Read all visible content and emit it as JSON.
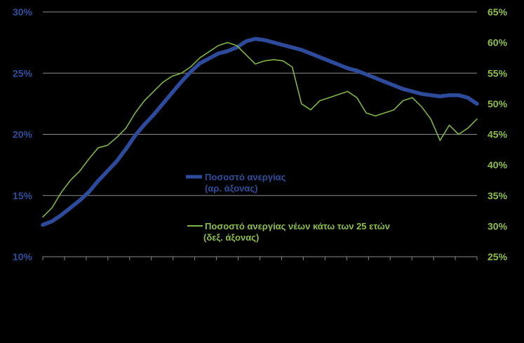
{
  "chart_data": {
    "type": "line",
    "grid": "horizontal",
    "legend_placement": "center",
    "colors": {
      "background": "#000000",
      "grid": "#8a8a8a",
      "left_axis_text": "#2f4f9e",
      "right_axis_text": "#8fbf4a",
      "series_total": "#2e4a9a",
      "series_youth": "#7fb543"
    },
    "y_left": {
      "min": 10,
      "max": 30,
      "ticks": [
        "10%",
        "15%",
        "20%",
        "25%",
        "30%"
      ],
      "tick_values": [
        10,
        15,
        20,
        25,
        30
      ]
    },
    "y_right": {
      "min": 25,
      "max": 65,
      "ticks": [
        "25%",
        "30%",
        "35%",
        "40%",
        "45%",
        "50%",
        "55%",
        "60%",
        "65%"
      ],
      "tick_values": [
        25,
        30,
        35,
        40,
        45,
        50,
        55,
        60,
        65
      ]
    },
    "x_tick_count": 21,
    "series": [
      {
        "name": "Ποσοστό ανεργίας",
        "name_line2": "(αρ. άξονας)",
        "axis": "left",
        "values": [
          12.6,
          12.9,
          13.4,
          14.0,
          14.6,
          15.3,
          16.2,
          17.0,
          17.8,
          18.8,
          19.9,
          20.8,
          21.6,
          22.5,
          23.4,
          24.3,
          25.1,
          25.8,
          26.2,
          26.6,
          26.8,
          27.1,
          27.6,
          27.8,
          27.7,
          27.5,
          27.3,
          27.1,
          26.9,
          26.6,
          26.3,
          26.0,
          25.7,
          25.4,
          25.2,
          24.9,
          24.6,
          24.3,
          24.0,
          23.7,
          23.5,
          23.3,
          23.2,
          23.1,
          23.2,
          23.2,
          23.0,
          22.5
        ]
      },
      {
        "name": "Ποσοστό ανεργίας νέων κάτω των 25 ετών",
        "name_line2": "(δεξ. άξονας)",
        "axis": "right",
        "values": [
          31.5,
          33.0,
          35.5,
          37.5,
          39.0,
          41.0,
          42.8,
          43.2,
          44.5,
          46.0,
          48.5,
          50.5,
          52.0,
          53.5,
          54.5,
          55.0,
          56.0,
          57.5,
          58.5,
          59.5,
          60.0,
          59.5,
          58.0,
          56.5,
          57.0,
          57.2,
          57.0,
          56.0,
          50.0,
          49.0,
          50.5,
          51.0,
          51.5,
          52.0,
          51.0,
          48.5,
          48.0,
          48.5,
          49.0,
          50.5,
          51.0,
          49.5,
          47.5,
          44.0,
          46.5,
          45.0,
          46.0,
          47.5
        ]
      }
    ]
  }
}
